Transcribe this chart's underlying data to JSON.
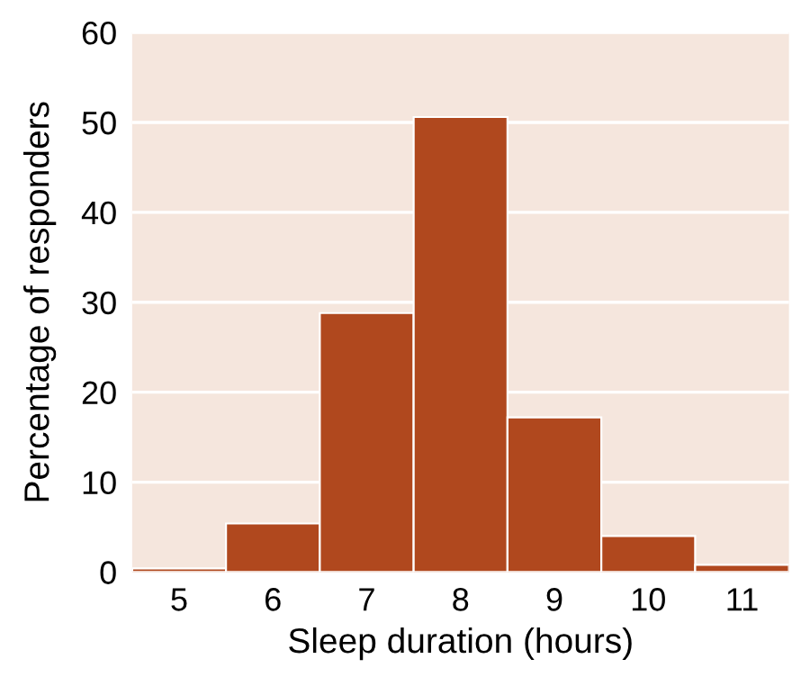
{
  "chart_data": {
    "type": "histogram",
    "xlabel": "Sleep duration (hours)",
    "ylabel": "Percentage of responders",
    "bins": [
      4.5,
      5.5,
      6.5,
      7.5,
      8.5,
      9.5,
      10.5,
      11.5
    ],
    "values": [
      0.4,
      5.4,
      28.8,
      50.6,
      17.2,
      4.0,
      0.8
    ],
    "color": "#b0481e",
    "xlim": [
      4.5,
      11.5
    ],
    "xticks": [
      5,
      6,
      7,
      8,
      9,
      10,
      11
    ],
    "ylim": [
      0,
      60
    ],
    "yticks": [
      0,
      10,
      20,
      30,
      40,
      50,
      60
    ],
    "grid": "y"
  }
}
